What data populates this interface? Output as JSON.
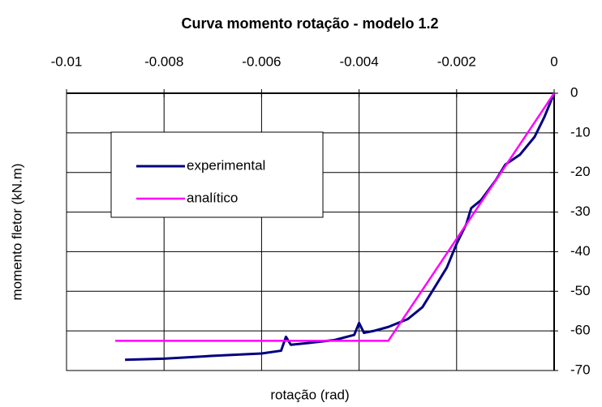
{
  "chart_data": {
    "type": "line",
    "title": "Curva momento rotação - modelo 1.2",
    "x_label": "rotação (rad)",
    "y_label": "momento fletor (kN.m)",
    "xlim": [
      -0.01,
      0
    ],
    "xticks": [
      -0.01,
      -0.008,
      -0.006,
      -0.004,
      -0.002,
      0
    ],
    "ylim": [
      -70,
      0
    ],
    "yticks": [
      0,
      -10,
      -20,
      -30,
      -40,
      -50,
      -60,
      -70
    ],
    "grid": true,
    "legend": "upper left",
    "series": [
      {
        "name": "experimental",
        "color": "#000080",
        "x": [
          -0.0088,
          -0.008,
          -0.007,
          -0.006,
          -0.0056,
          -0.0055,
          -0.0054,
          -0.005,
          -0.0045,
          -0.0041,
          -0.004,
          -0.0039,
          -0.0037,
          -0.0034,
          -0.003,
          -0.0027,
          -0.0025,
          -0.0022,
          -0.002,
          -0.0018,
          -0.0017,
          -0.0015,
          -0.0012,
          -0.001,
          -0.0007,
          -0.0004,
          -0.0002,
          0
        ],
        "values": [
          -67.3,
          -67,
          -66.3,
          -65.7,
          -65,
          -61.5,
          -63.5,
          -63,
          -62.3,
          -61,
          -58,
          -60.5,
          -60,
          -59,
          -57,
          -54,
          -50,
          -44,
          -38,
          -33,
          -29,
          -27,
          -22,
          -18,
          -15.5,
          -11,
          -6,
          0
        ]
      },
      {
        "name": "analítico",
        "color": "#ff00ff",
        "x": [
          -0.009,
          -0.0034,
          0
        ],
        "values": [
          -62.5,
          -62.5,
          0
        ]
      }
    ]
  }
}
